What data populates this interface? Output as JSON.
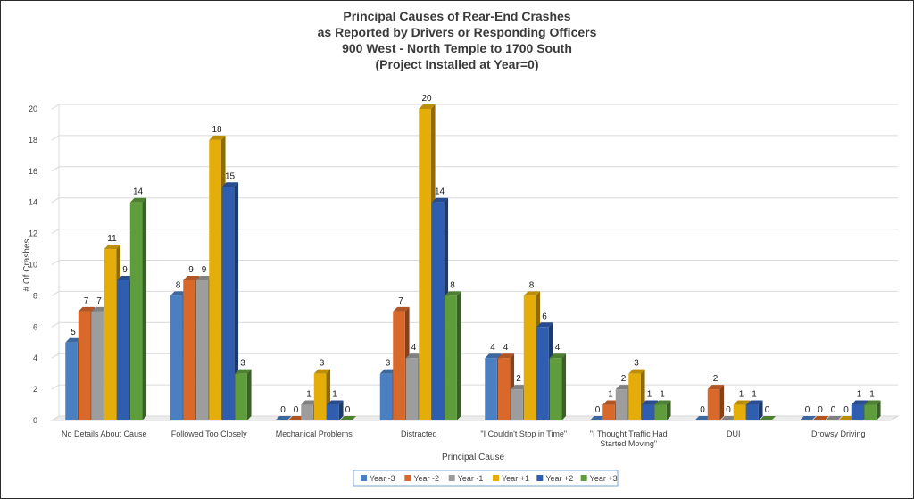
{
  "chart_data": {
    "type": "bar",
    "title_lines": [
      "Principal Causes of Rear-End Crashes",
      "as Reported by Drivers or Responding Officers",
      "900 West - North Temple to 1700 South",
      "(Project Installed at Year=0)"
    ],
    "xlabel": "Principal Cause",
    "ylabel": "# Of Crashes",
    "ylim": [
      0,
      20
    ],
    "yticks": [
      0,
      2,
      4,
      6,
      8,
      10,
      12,
      14,
      16,
      18,
      20
    ],
    "grid": true,
    "legend_position": "bottom",
    "categories": [
      [
        "No Details About Cause"
      ],
      [
        "Followed Too Closely"
      ],
      [
        "Mechanical Problems"
      ],
      [
        "Distracted"
      ],
      [
        "\"I Couldn't Stop in Time\""
      ],
      [
        "\"I Thought Traffic Had",
        "Started Moving\""
      ],
      [
        "DUI"
      ],
      [
        "Drowsy Driving"
      ]
    ],
    "series": [
      {
        "name": "Year -3",
        "color": "#4a7fc1",
        "values": [
          5,
          8,
          0,
          3,
          4,
          0,
          0,
          0
        ]
      },
      {
        "name": "Year -2",
        "color": "#d8692a",
        "values": [
          7,
          9,
          0,
          7,
          4,
          1,
          2,
          0
        ]
      },
      {
        "name": "Year -1",
        "color": "#9d9d9d",
        "values": [
          7,
          9,
          1,
          4,
          2,
          2,
          0,
          0
        ]
      },
      {
        "name": "Year +1",
        "color": "#e5ad09",
        "values": [
          11,
          18,
          3,
          20,
          8,
          3,
          1,
          0
        ]
      },
      {
        "name": "Year +2",
        "color": "#2f5daf",
        "values": [
          9,
          15,
          1,
          14,
          6,
          1,
          1,
          1
        ]
      },
      {
        "name": "Year +3",
        "color": "#5e9c3c",
        "values": [
          14,
          3,
          0,
          8,
          4,
          1,
          0,
          1
        ]
      }
    ]
  }
}
